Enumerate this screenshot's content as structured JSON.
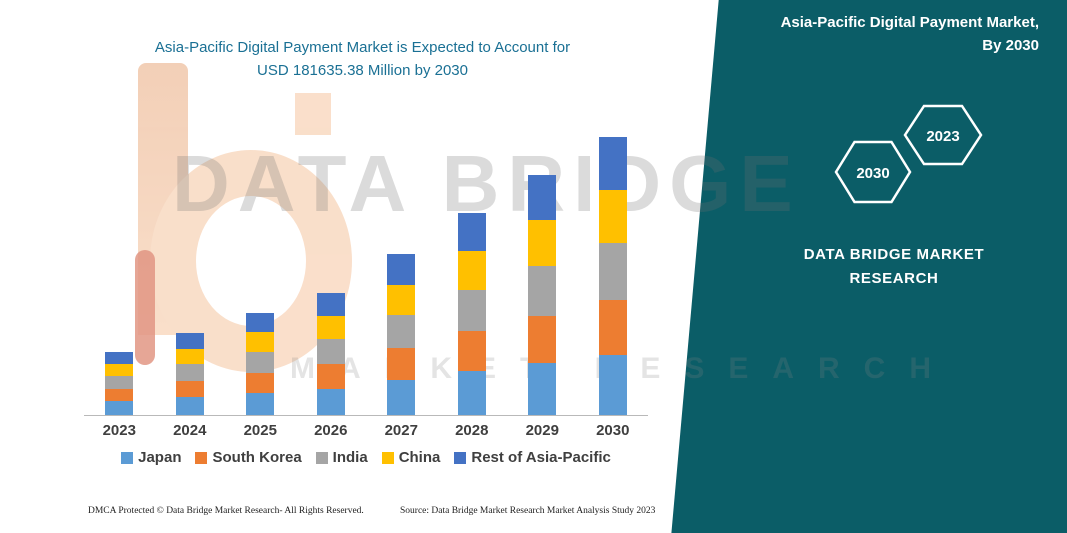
{
  "header": {
    "title_line1": "Asia-Pacific Digital Payment Market is Expected to Account for",
    "title_line2": "USD 181635.38 Million by 2030"
  },
  "side_panel": {
    "bg_color": "#0b5d67",
    "title_line1": "Asia-Pacific Digital Payment Market,",
    "title_line2": "By 2030",
    "badges": [
      "2030",
      "2023"
    ],
    "brand_line1": "DATA BRIDGE MARKET",
    "brand_line2": "RESEARCH"
  },
  "watermark": {
    "line1": "DATA BRIDGE",
    "line2": "MARKET RESEARCH"
  },
  "chart_data": {
    "type": "bar",
    "stacked": true,
    "title": "Asia-Pacific Digital Payment Market is Expected to Account for USD 181635.38 Million by 2030",
    "xlabel": "",
    "ylabel": "",
    "grid": false,
    "legend_position": "bottom",
    "categories": [
      "2023",
      "2024",
      "2025",
      "2026",
      "2027",
      "2028",
      "2029",
      "2030"
    ],
    "series": [
      {
        "name": "Japan",
        "color": "#5B9BD5",
        "values": [
          8900,
          11580,
          14410,
          17240,
          22750,
          28530,
          33890,
          39233.24
        ]
      },
      {
        "name": "South Korea",
        "color": "#ED7D31",
        "values": [
          8160,
          10610,
          13210,
          15800,
          20850,
          26160,
          31070,
          35963.8
        ]
      },
      {
        "name": "India",
        "color": "#A5A5A5",
        "values": [
          8450,
          10990,
          13670,
          16360,
          21590,
          27080,
          32160,
          37235.25
        ]
      },
      {
        "name": "China",
        "color": "#FFC000",
        "values": [
          7870,
          10240,
          12740,
          15240,
          20110,
          25230,
          29970,
          34692.36
        ]
      },
      {
        "name": "Rest of Asia-Pacific",
        "color": "#4472C4",
        "values": [
          7830,
          10180,
          12670,
          15160,
          20010,
          25100,
          29810,
          34510.73
        ]
      }
    ],
    "total_2030": 181635.38
  },
  "footer": {
    "dmca": "DMCA Protected © Data Bridge Market Research-  All Rights Reserved.",
    "source": "Source: Data Bridge Market Research  Market Analysis Study 2023"
  }
}
